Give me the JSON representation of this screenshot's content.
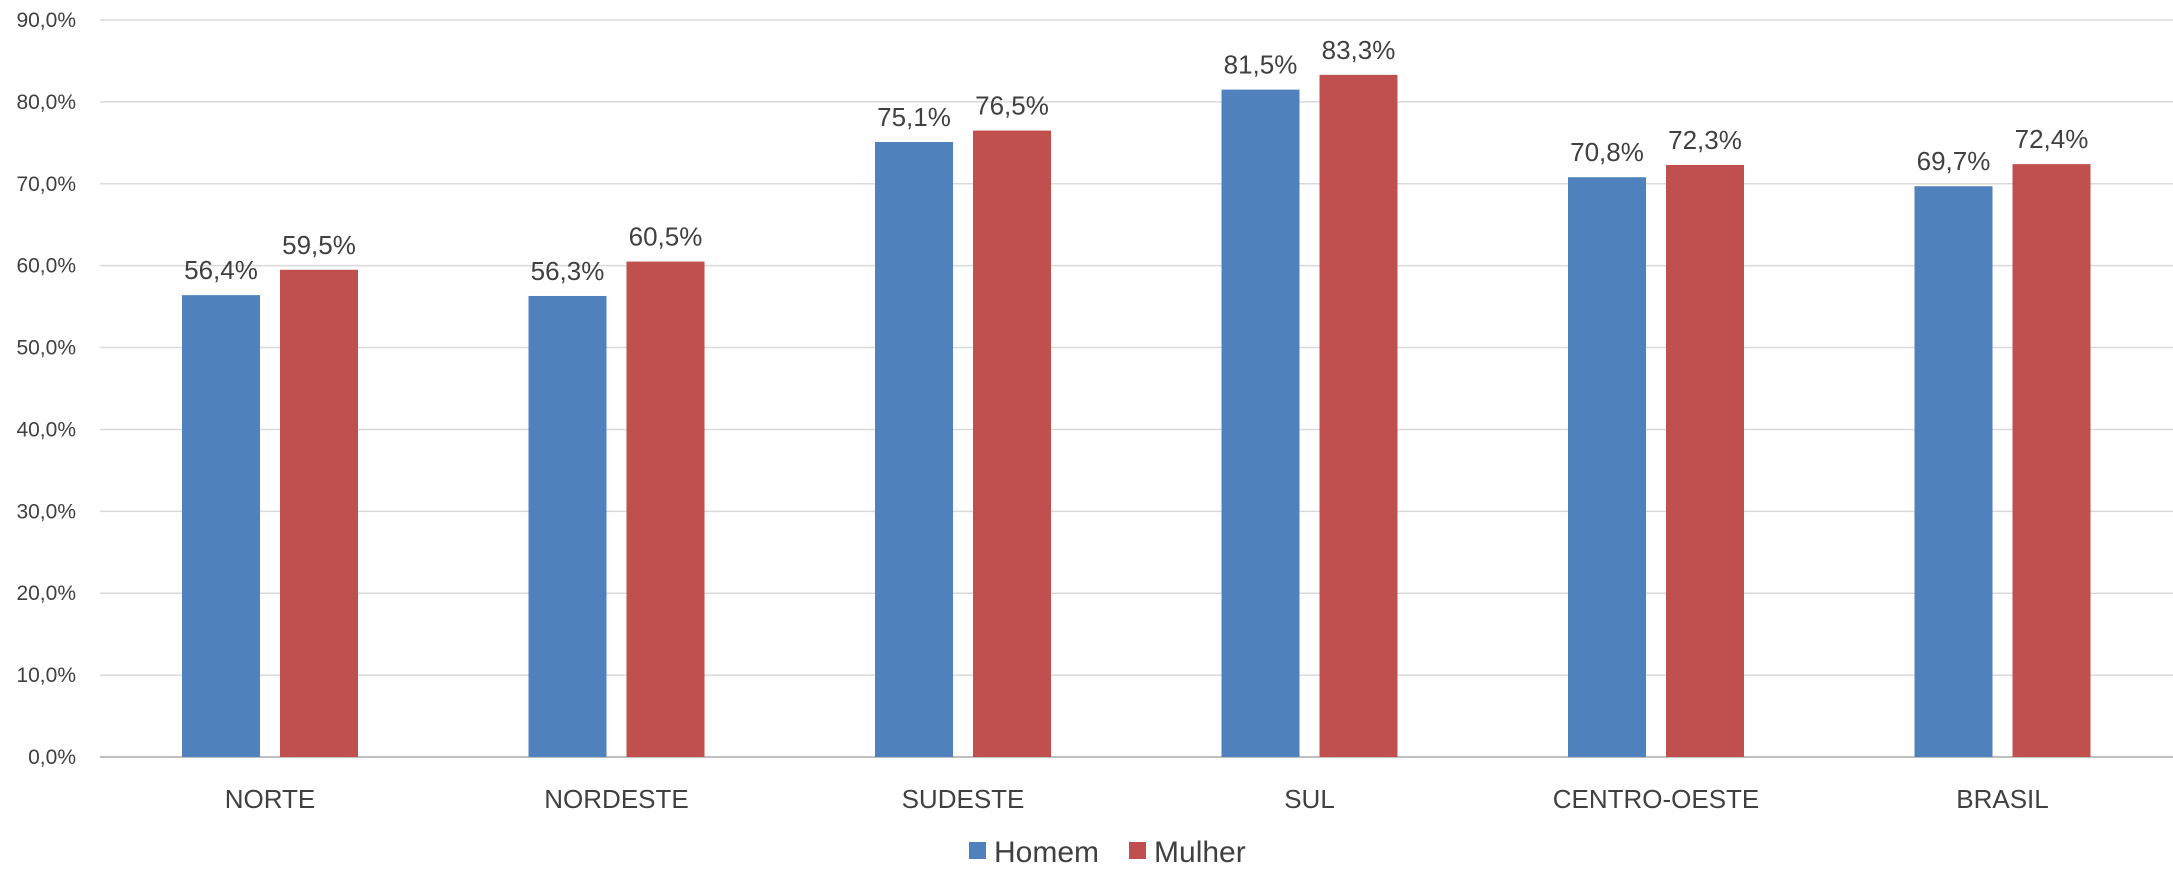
{
  "chart_data": {
    "type": "bar",
    "title": "",
    "xlabel": "",
    "ylabel": "",
    "categories": [
      "NORTE",
      "NORDESTE",
      "SUDESTE",
      "SUL",
      "CENTRO-OESTE",
      "BRASIL"
    ],
    "series": [
      {
        "name": "Homem",
        "color": "#4f81bd",
        "values": [
          56.4,
          56.3,
          75.1,
          81.5,
          70.8,
          69.7
        ],
        "labels": [
          "56,4%",
          "56,3%",
          "75,1%",
          "81,5%",
          "70,8%",
          "69,7%"
        ]
      },
      {
        "name": "Mulher",
        "color": "#c0504d",
        "values": [
          59.5,
          60.5,
          76.5,
          83.3,
          72.3,
          72.4
        ],
        "labels": [
          "59,5%",
          "60,5%",
          "76,5%",
          "83,3%",
          "72,3%",
          "72,4%"
        ]
      }
    ],
    "ylim": [
      0,
      90
    ],
    "yticks": [
      0,
      10,
      20,
      30,
      40,
      50,
      60,
      70,
      80,
      90
    ],
    "ytick_labels": [
      "0,0%",
      "10,0%",
      "20,0%",
      "30,0%",
      "40,0%",
      "50,0%",
      "60,0%",
      "70,0%",
      "80,0%",
      "90,0%"
    ],
    "grid": true,
    "legend_position": "bottom-center"
  }
}
